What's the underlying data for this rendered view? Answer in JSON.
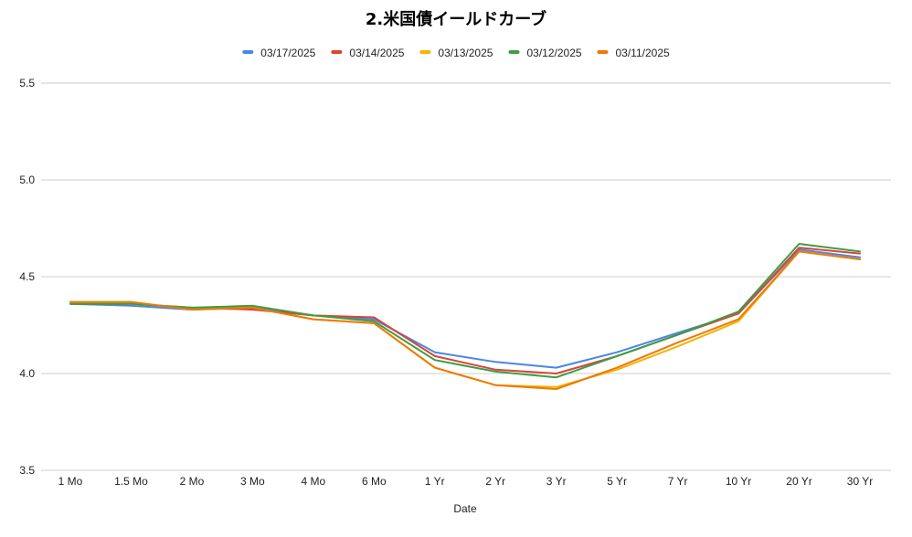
{
  "chart_data": {
    "type": "line",
    "title": "2.米国債イールドカーブ",
    "xlabel": "Date",
    "ylabel": "",
    "ylim": [
      3.5,
      5.5
    ],
    "yticks": [
      "3.5",
      "4.0",
      "4.5",
      "5.0",
      "5.5"
    ],
    "grid": true,
    "legend_position": "top",
    "categories": [
      "1 Mo",
      "1.5 Mo",
      "2 Mo",
      "3 Mo",
      "4 Mo",
      "6 Mo",
      "1 Yr",
      "2 Yr",
      "3 Yr",
      "5 Yr",
      "7 Yr",
      "10 Yr",
      "20 Yr",
      "30 Yr"
    ],
    "series": [
      {
        "name": "03/17/2025",
        "color": "#4a86e8",
        "values": [
          4.36,
          4.35,
          4.33,
          4.34,
          4.3,
          4.28,
          4.11,
          4.06,
          4.03,
          4.11,
          4.21,
          4.31,
          4.64,
          4.6
        ]
      },
      {
        "name": "03/14/2025",
        "color": "#db4437",
        "values": [
          4.36,
          4.36,
          4.34,
          4.33,
          4.3,
          4.29,
          4.09,
          4.02,
          4.0,
          4.09,
          4.2,
          4.31,
          4.65,
          4.62
        ]
      },
      {
        "name": "03/13/2025",
        "color": "#f4b400",
        "values": [
          4.37,
          4.36,
          4.34,
          4.34,
          4.28,
          4.26,
          4.03,
          3.94,
          3.93,
          4.02,
          4.14,
          4.27,
          4.63,
          4.59
        ]
      },
      {
        "name": "03/12/2025",
        "color": "#3c9d45",
        "values": [
          4.36,
          4.36,
          4.34,
          4.35,
          4.3,
          4.27,
          4.07,
          4.01,
          3.98,
          4.09,
          4.2,
          4.32,
          4.67,
          4.63
        ]
      },
      {
        "name": "03/11/2025",
        "color": "#f07800",
        "values": [
          4.37,
          4.37,
          4.33,
          4.34,
          4.28,
          4.26,
          4.03,
          3.94,
          3.92,
          4.03,
          4.16,
          4.28,
          4.63,
          4.59
        ]
      }
    ]
  }
}
